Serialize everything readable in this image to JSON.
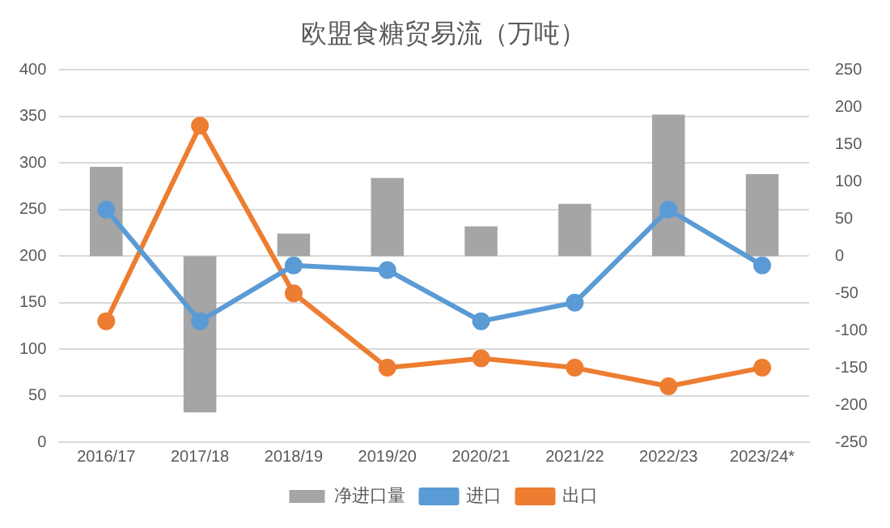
{
  "chart_data": {
    "type": "bar",
    "title": "欧盟食糖贸易流（万吨）",
    "categories": [
      "2016/17",
      "2017/18",
      "2018/19",
      "2019/20",
      "2020/21",
      "2021/22",
      "2022/23",
      "2023/24*"
    ],
    "series": [
      {
        "name": "净进口量",
        "axis": "y2",
        "color": "#a5a5a5",
        "values": [
          120,
          -210,
          30,
          105,
          40,
          70,
          190,
          110
        ]
      },
      {
        "name": "进口",
        "type": "line",
        "color": "#5b9bd5",
        "values": [
          250,
          130,
          190,
          185,
          130,
          150,
          250,
          190
        ]
      },
      {
        "name": "出口",
        "type": "line",
        "color": "#ed7d31",
        "values": [
          130,
          340,
          160,
          80,
          90,
          80,
          60,
          80
        ]
      }
    ],
    "ylim": [
      0,
      400
    ],
    "yticks": [
      0,
      50,
      100,
      150,
      200,
      250,
      300,
      350,
      400
    ],
    "y2lim": [
      -250,
      250
    ],
    "y2ticks": [
      -250,
      -200,
      -150,
      -100,
      -50,
      0,
      50,
      100,
      150,
      200,
      250
    ],
    "grid": "y",
    "legend": "bottom",
    "marker": "circle"
  }
}
